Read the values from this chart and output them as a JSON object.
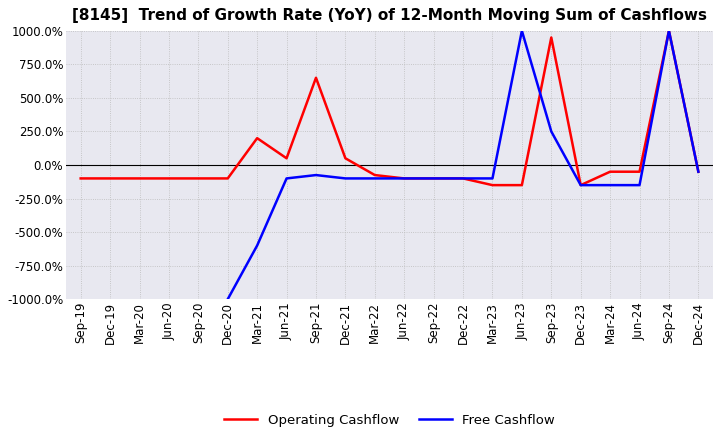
{
  "title": "[8145]  Trend of Growth Rate (YoY) of 12-Month Moving Sum of Cashflows",
  "ylim": [
    -1000,
    1000
  ],
  "yticks": [
    -1000,
    -750,
    -500,
    -250,
    0,
    250,
    500,
    750,
    1000
  ],
  "legend_labels": [
    "Operating Cashflow",
    "Free Cashflow"
  ],
  "legend_colors": [
    "red",
    "blue"
  ],
  "x_labels": [
    "Sep-19",
    "Dec-19",
    "Mar-20",
    "Jun-20",
    "Sep-20",
    "Dec-20",
    "Mar-21",
    "Jun-21",
    "Sep-21",
    "Dec-21",
    "Mar-22",
    "Jun-22",
    "Sep-22",
    "Dec-22",
    "Mar-23",
    "Jun-23",
    "Sep-23",
    "Dec-23",
    "Mar-24",
    "Jun-24",
    "Sep-24",
    "Dec-24"
  ],
  "operating_cashflow": [
    -100,
    -100,
    -100,
    -100,
    -100,
    -100,
    200,
    50,
    650,
    50,
    -75,
    -100,
    -100,
    -100,
    -150,
    -150,
    950,
    -150,
    -50,
    -50,
    1000,
    -50
  ],
  "free_cashflow": [
    null,
    null,
    null,
    null,
    null,
    -1000,
    -600,
    -100,
    -75,
    -100,
    -100,
    -100,
    -100,
    -100,
    -100,
    1000,
    250,
    -150,
    -150,
    -150,
    1000,
    -50
  ],
  "background_color": "#ffffff",
  "plot_bg_color": "#e8e8f0",
  "grid_color": "#bbbbbb",
  "title_fontsize": 11,
  "tick_fontsize": 8.5
}
